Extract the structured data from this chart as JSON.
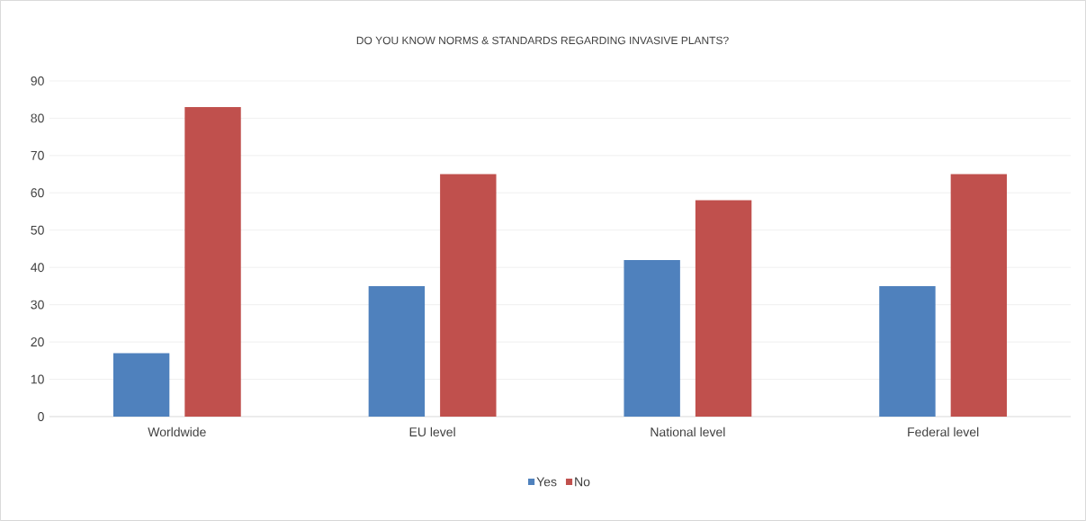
{
  "chart_data": {
    "type": "bar",
    "title": "DO YOU KNOW NORMS & STANDARDS REGARDING INVASIVE PLANTS?",
    "categories": [
      "Worldwide",
      "EU level",
      "National level",
      "Federal level"
    ],
    "series": [
      {
        "name": "Yes",
        "color": "#4f81bd",
        "values": [
          17,
          35,
          42,
          35
        ]
      },
      {
        "name": "No",
        "color": "#c0504d",
        "values": [
          83,
          65,
          58,
          65
        ]
      }
    ],
    "ylim": [
      0,
      90
    ],
    "yticks": [
      0,
      10,
      20,
      30,
      40,
      50,
      60,
      70,
      80,
      90
    ],
    "grid": "y",
    "legend": "bottom"
  }
}
